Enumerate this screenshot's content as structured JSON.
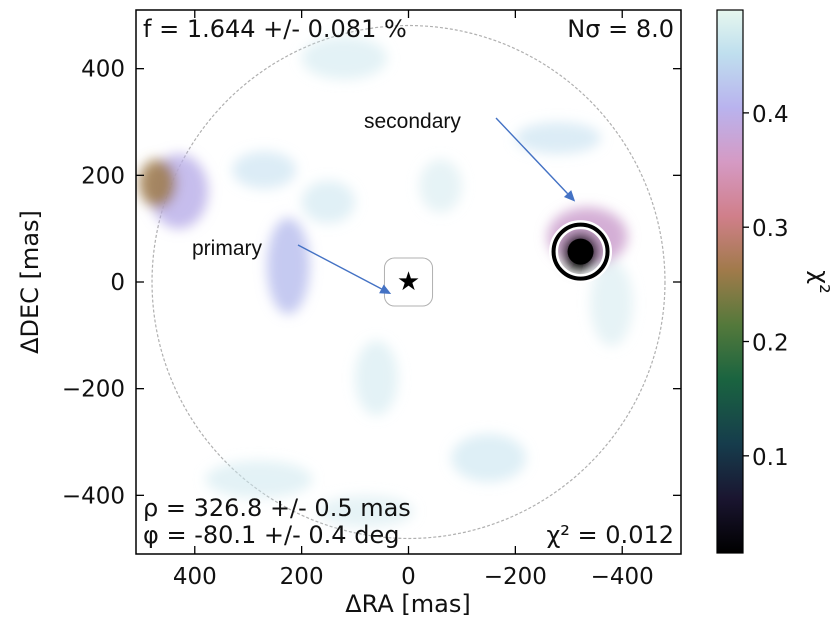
{
  "chart_data": {
    "type": "heatmap",
    "xlabel": "ΔRA [mas]",
    "ylabel": "ΔDEC [mas]",
    "xlim": [
      510,
      -510
    ],
    "ylim": [
      -510,
      510
    ],
    "x_ticks": [
      {
        "v": 400,
        "label": "400"
      },
      {
        "v": 200,
        "label": "200"
      },
      {
        "v": 0,
        "label": "0"
      },
      {
        "v": -200,
        "label": "−200"
      },
      {
        "v": -400,
        "label": "−400"
      }
    ],
    "y_ticks": [
      {
        "v": 400,
        "label": "400"
      },
      {
        "v": 200,
        "label": "200"
      },
      {
        "v": 0,
        "label": "0"
      },
      {
        "v": -200,
        "label": "−200"
      },
      {
        "v": -400,
        "label": "−400"
      }
    ],
    "colorbar": {
      "label": "χ²",
      "range": [
        0.015,
        0.49
      ],
      "ticks": [
        {
          "v": 0.4,
          "label": "0.4"
        },
        {
          "v": 0.3,
          "label": "0.3"
        },
        {
          "v": 0.2,
          "label": "0.2"
        },
        {
          "v": 0.1,
          "label": "0.1"
        }
      ],
      "colormap": "cubehelix"
    },
    "texts": {
      "f": "f = 1.644 +/- 0.081 %",
      "nsigma": "Nσ = 8.0",
      "rho": "ρ = 326.8 +/- 0.5 mas",
      "phi": "φ = -80.1 +/- 0.4 deg",
      "chi2": "χ² = 0.012"
    },
    "annotations": [
      {
        "text": "primary",
        "target": [
          0,
          0
        ]
      },
      {
        "text": "secondary",
        "target": [
          -322,
          57
        ]
      }
    ],
    "markers": {
      "primary_star": [
        0,
        0
      ],
      "companion_circle": [
        -322,
        57
      ]
    },
    "field_radius_mas": 480,
    "inner_mask_radius_mas": 45,
    "chi2_blobs": [
      {
        "x": -322,
        "y": 57,
        "sx": 36,
        "sy": 36,
        "chi2": 0.012
      },
      {
        "x": -335,
        "y": 85,
        "sx": 75,
        "sy": 55,
        "chi2": 0.37
      },
      {
        "x": 470,
        "y": 185,
        "sx": 35,
        "sy": 45,
        "chi2": 0.26
      },
      {
        "x": 430,
        "y": 170,
        "sx": 55,
        "sy": 70,
        "chi2": 0.4
      },
      {
        "x": 225,
        "y": 30,
        "sx": 40,
        "sy": 90,
        "chi2": 0.42
      },
      {
        "x": 270,
        "y": 210,
        "sx": 60,
        "sy": 35,
        "chi2": 0.45
      },
      {
        "x": 150,
        "y": 150,
        "sx": 50,
        "sy": 40,
        "chi2": 0.46
      },
      {
        "x": -280,
        "y": 270,
        "sx": 80,
        "sy": 30,
        "chi2": 0.45
      },
      {
        "x": 120,
        "y": 420,
        "sx": 80,
        "sy": 40,
        "chi2": 0.465
      },
      {
        "x": 60,
        "y": -180,
        "sx": 40,
        "sy": 70,
        "chi2": 0.465
      },
      {
        "x": -150,
        "y": -330,
        "sx": 70,
        "sy": 45,
        "chi2": 0.455
      },
      {
        "x": 280,
        "y": -370,
        "sx": 100,
        "sy": 35,
        "chi2": 0.465
      },
      {
        "x": 80,
        "y": -430,
        "sx": 90,
        "sy": 30,
        "chi2": 0.47
      },
      {
        "x": -380,
        "y": -40,
        "sx": 40,
        "sy": 80,
        "chi2": 0.47
      },
      {
        "x": -60,
        "y": 180,
        "sx": 40,
        "sy": 50,
        "chi2": 0.47
      }
    ]
  }
}
